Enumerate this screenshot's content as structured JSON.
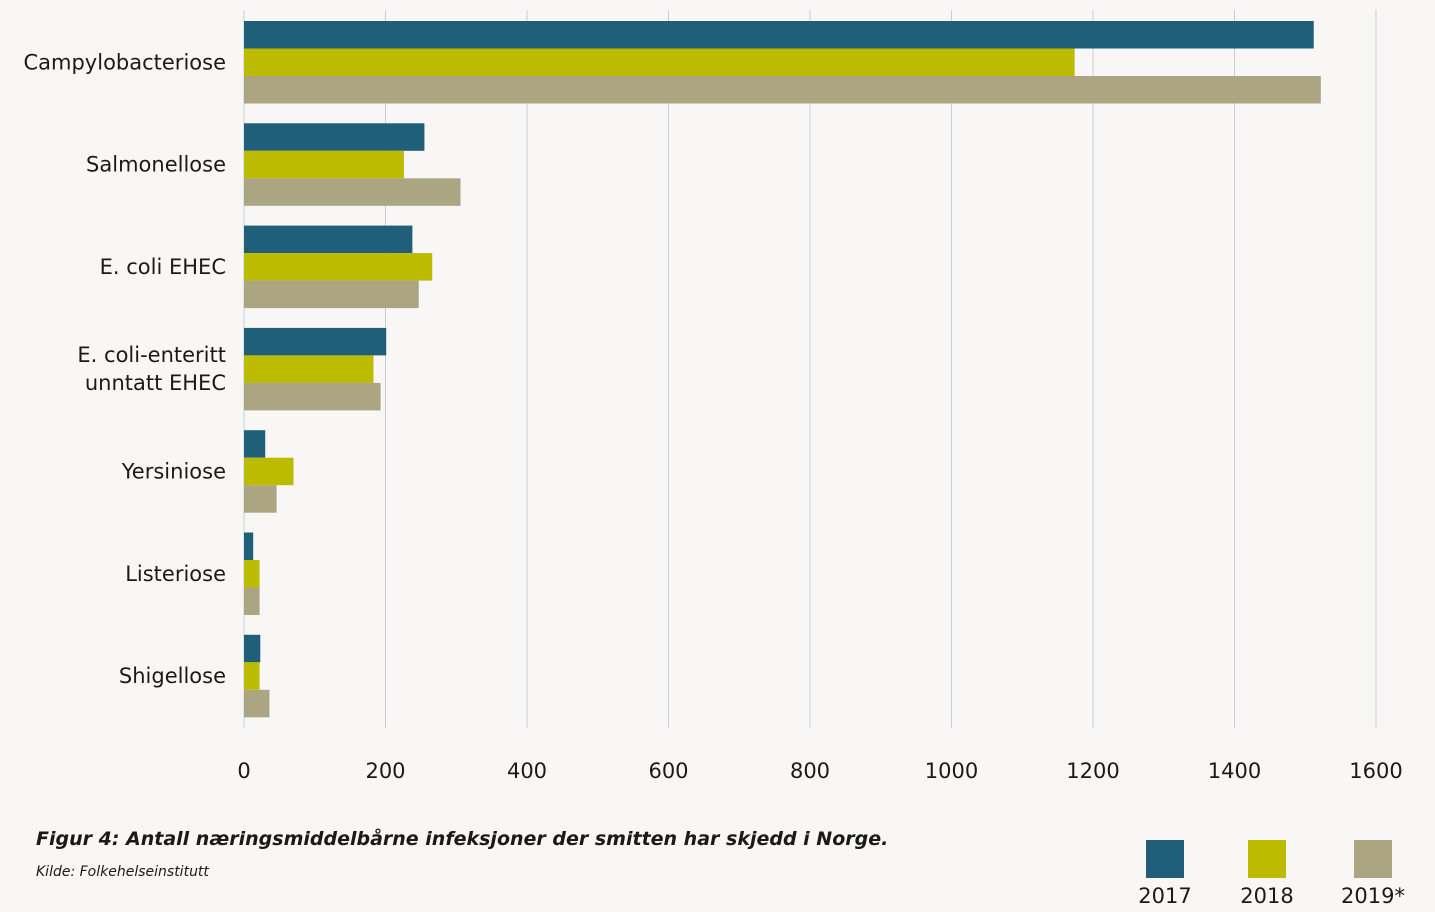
{
  "chart_data": {
    "type": "bar",
    "orientation": "horizontal",
    "categories": [
      "Campylobacteriose",
      "Salmonellose",
      "E. coli EHEC",
      "E. coli-enteritt unntatt EHEC",
      "Yersiniose",
      "Listeriose",
      "Shigellose"
    ],
    "category_lines": [
      [
        "Campylobacteriose"
      ],
      [
        "Salmonellose"
      ],
      [
        "E. coli EHEC"
      ],
      [
        "E. coli-enteritt",
        "unntatt EHEC"
      ],
      [
        "Yersiniose"
      ],
      [
        "Listeriose"
      ],
      [
        "Shigellose"
      ]
    ],
    "series": [
      {
        "name": "2017",
        "color": "#1f5f7a",
        "values": [
          1512,
          255,
          238,
          201,
          30,
          13,
          23
        ]
      },
      {
        "name": "2018",
        "color": "#bcbb00",
        "values": [
          1174,
          226,
          266,
          183,
          70,
          22,
          22
        ]
      },
      {
        "name": "2019*",
        "color": "#aba582",
        "values": [
          1522,
          306,
          247,
          193,
          46,
          22,
          36
        ]
      }
    ],
    "xlim": [
      0,
      1600
    ],
    "xticks": [
      "0",
      "200",
      "400",
      "600",
      "800",
      "1000",
      "1200",
      "1400",
      "1600"
    ],
    "grid": "vertical",
    "legend_position": "bottom-right",
    "title": "Figur 4: Antall næringsmiddelbårne infeksjoner der smitten har skjedd i Norge.",
    "source": "Kilde: Folkehelseinstitutt"
  }
}
